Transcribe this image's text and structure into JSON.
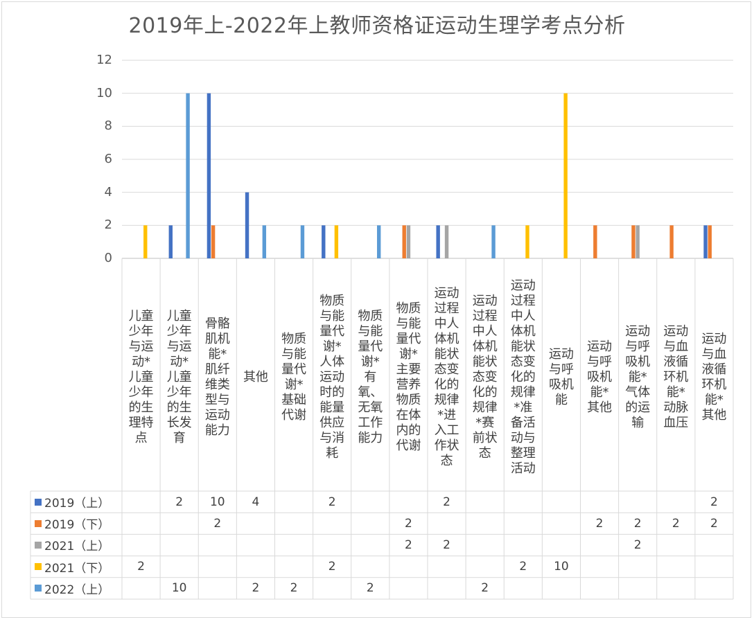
{
  "chart_data": {
    "type": "bar",
    "title": "2019年上-2022年上教师资格证运动生理学考点分析",
    "ylim": [
      0,
      12
    ],
    "yticks": [
      0,
      2,
      4,
      6,
      8,
      10,
      12
    ],
    "grid": true,
    "legend": "data-table",
    "categories": [
      "儿童少年与运动*儿童少年的生理特点",
      "儿童少年与运动*儿童少年的生长发育",
      "骨骼肌机能*肌纤维类型与运动能力",
      "其他",
      "物质与能量代谢*基础代谢",
      "物质与能量代谢*人体运动时的能量供应与消耗",
      "物质与能量代谢*有氧、无氧工作能力",
      "物质与能量代谢*主要营养物质在体内的代谢",
      "运动过程中人体机能状态变化的规律*进入工作状态",
      "运动过程中人体机能状态变化的规律*赛前状态",
      "运动过程中人体机能状态变化的规律*准备活动与整理活动",
      "运动与呼吸机能",
      "运动与呼吸机能*其他",
      "运动与呼吸机能*气体的运输",
      "运动与血液循环机能*动脉血压",
      "运动与血液循环机能*其他"
    ],
    "series": [
      {
        "name": "2019（上）",
        "color": "#4472c4",
        "values": [
          null,
          2,
          10,
          4,
          null,
          2,
          null,
          null,
          2,
          null,
          null,
          null,
          null,
          null,
          null,
          2
        ]
      },
      {
        "name": "2019（下）",
        "color": "#ed7d31",
        "values": [
          null,
          null,
          2,
          null,
          null,
          null,
          null,
          2,
          null,
          null,
          null,
          null,
          2,
          2,
          2,
          2
        ]
      },
      {
        "name": "2021（上）",
        "color": "#a5a5a5",
        "values": [
          null,
          null,
          null,
          null,
          null,
          null,
          null,
          2,
          2,
          null,
          null,
          null,
          null,
          2,
          null,
          null
        ]
      },
      {
        "name": "2021（下）",
        "color": "#ffc000",
        "values": [
          2,
          null,
          null,
          null,
          null,
          2,
          null,
          null,
          null,
          null,
          2,
          10,
          null,
          null,
          null,
          null
        ]
      },
      {
        "name": "2022（上）",
        "color": "#5b9bd5",
        "values": [
          null,
          10,
          null,
          2,
          2,
          null,
          2,
          null,
          null,
          2,
          null,
          null,
          null,
          null,
          null,
          null
        ]
      }
    ]
  }
}
